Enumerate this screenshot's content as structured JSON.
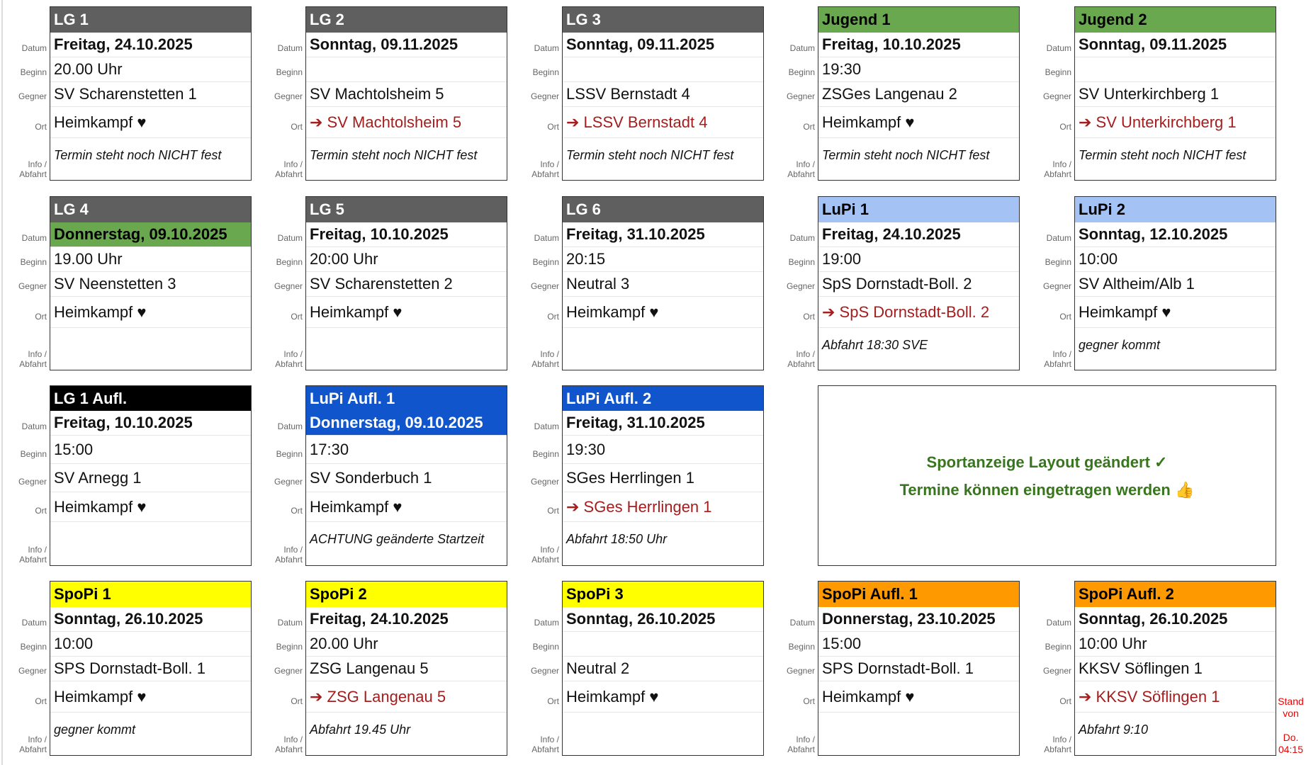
{
  "labels": {
    "datum": "Datum",
    "beginn": "Beginn",
    "gegner": "Gegner",
    "ort": "Ort",
    "info1": "Info /",
    "info2": "Abfahrt"
  },
  "colors": {
    "gray": "#5f5f5f",
    "green": "#6aa84f",
    "lightblue": "#a4c2f4",
    "blue": "#1155cc",
    "black": "#000000",
    "yellow": "#ffff00",
    "orange": "#ff9900",
    "away_text": "#a51d1d",
    "message_text": "#38761d",
    "stand_text": "#ee0000"
  },
  "cards": [
    {
      "title": "LG 1",
      "bg": "#5f5f5f",
      "fg": "#ffffff",
      "datum": "Freitag, 24.10.2025",
      "beginn": "20.00 Uhr",
      "gegner": "SV Scharenstetten 1",
      "ort": "Heimkampf ♥",
      "away": false,
      "info": "Termin steht noch NICHT fest"
    },
    {
      "title": "LG 2",
      "bg": "#5f5f5f",
      "fg": "#ffffff",
      "datum": "Sonntag, 09.11.2025",
      "beginn": "",
      "gegner": "SV Machtolsheim 5",
      "ort": "➔ SV Machtolsheim 5",
      "away": true,
      "info": "Termin steht noch NICHT fest"
    },
    {
      "title": "LG 3",
      "bg": "#5f5f5f",
      "fg": "#ffffff",
      "datum": "Sonntag, 09.11.2025",
      "beginn": "",
      "gegner": "LSSV Bernstadt 4",
      "ort": "➔ LSSV Bernstadt 4",
      "away": true,
      "info": "Termin steht noch NICHT fest"
    },
    {
      "title": "Jugend 1",
      "bg": "#6aa84f",
      "fg": "#000000",
      "datum": "Freitag, 10.10.2025",
      "beginn": "19:30",
      "gegner": "ZSGes Langenau 2",
      "ort": "Heimkampf ♥",
      "away": false,
      "info": "Termin steht noch NICHT fest"
    },
    {
      "title": "Jugend 2",
      "bg": "#6aa84f",
      "fg": "#000000",
      "datum": "Sonntag, 09.11.2025",
      "beginn": "",
      "gegner": "SV Unterkirchberg 1",
      "ort": "➔ SV Unterkirchberg 1",
      "away": true,
      "info": "Termin steht noch NICHT fest"
    },
    {
      "title": "LG 4",
      "bg": "#5f5f5f",
      "fg": "#ffffff",
      "datum": "Donnerstag, 09.10.2025",
      "datum_bg": "#6aa84f",
      "datum_fg": "#000000",
      "beginn": "19.00 Uhr",
      "gegner": "SV Neenstetten 3",
      "ort": "Heimkampf ♥",
      "away": false,
      "info": ""
    },
    {
      "title": "LG 5",
      "bg": "#5f5f5f",
      "fg": "#ffffff",
      "datum": "Freitag, 10.10.2025",
      "beginn": "20:00 Uhr",
      "gegner": "SV Scharenstetten 2",
      "ort": "Heimkampf ♥",
      "away": false,
      "info": ""
    },
    {
      "title": "LG 6",
      "bg": "#5f5f5f",
      "fg": "#ffffff",
      "datum": "Freitag, 31.10.2025",
      "beginn": "20:15",
      "gegner": "Neutral 3",
      "ort": "Heimkampf ♥",
      "away": false,
      "info": ""
    },
    {
      "title": "LuPi 1",
      "bg": "#a4c2f4",
      "fg": "#000000",
      "datum": "Freitag, 24.10.2025",
      "beginn": "19:00",
      "gegner": "SpS Dornstadt-Boll. 2",
      "ort": "➔ SpS Dornstadt-Boll. 2",
      "away": true,
      "info": "Abfahrt 18:30 SVE"
    },
    {
      "title": "LuPi 2",
      "bg": "#a4c2f4",
      "fg": "#000000",
      "datum": "Sonntag, 12.10.2025",
      "beginn": "10:00",
      "gegner": "SV Altheim/Alb 1",
      "ort": "Heimkampf ♥",
      "away": false,
      "info": "gegner kommt"
    },
    {
      "title": "LG 1 Aufl.",
      "bg": "#000000",
      "fg": "#ffffff",
      "datum": "Freitag, 10.10.2025",
      "beginn": "15:00",
      "gegner": "SV Arnegg 1",
      "ort": "Heimkampf ♥",
      "away": false,
      "info": ""
    },
    {
      "title": "LuPi Aufl. 1",
      "bg": "#1155cc",
      "fg": "#ffffff",
      "datum": "Donnerstag, 09.10.2025",
      "datum_bg": "#1155cc",
      "datum_fg": "#ffffff",
      "beginn": "17:30",
      "gegner": "SV Sonderbuch 1",
      "ort": "Heimkampf ♥",
      "away": false,
      "info": "ACHTUNG geänderte Startzeit"
    },
    {
      "title": "LuPi Aufl. 2",
      "bg": "#1155cc",
      "fg": "#ffffff",
      "datum": "Freitag, 31.10.2025",
      "beginn": "19:30",
      "gegner": "SGes Herrlingen 1",
      "ort": "➔ SGes Herrlingen 1",
      "away": true,
      "info": "Abfahrt 18:50 Uhr"
    },
    {
      "title": "SpoPi 1",
      "bg": "#ffff00",
      "fg": "#000000",
      "datum": "Sonntag, 26.10.2025",
      "beginn": "10:00",
      "gegner": "SPS Dornstadt-Boll. 1",
      "ort": "Heimkampf ♥",
      "away": false,
      "info": "gegner kommt"
    },
    {
      "title": "SpoPi 2",
      "bg": "#ffff00",
      "fg": "#000000",
      "datum": "Freitag, 24.10.2025",
      "beginn": "20.00 Uhr",
      "gegner": "ZSG Langenau 5",
      "ort": "➔ ZSG Langenau 5",
      "away": true,
      "info": "Abfahrt 19.45 Uhr"
    },
    {
      "title": "SpoPi 3",
      "bg": "#ffff00",
      "fg": "#000000",
      "datum": "Sonntag, 26.10.2025",
      "beginn": "",
      "gegner": "Neutral 2",
      "ort": "Heimkampf ♥",
      "away": false,
      "info": ""
    },
    {
      "title": "SpoPi Aufl. 1",
      "bg": "#ff9900",
      "fg": "#000000",
      "datum": "Donnerstag, 23.10.2025",
      "beginn": "15:00",
      "gegner": "SPS Dornstadt-Boll. 1",
      "ort": "Heimkampf ♥",
      "away": false,
      "info": ""
    },
    {
      "title": "SpoPi Aufl. 2",
      "bg": "#ff9900",
      "fg": "#000000",
      "datum": "Sonntag, 26.10.2025",
      "beginn": "10:00 Uhr",
      "gegner": "KKSV Söflingen 1",
      "ort": "➔ KKSV Söflingen 1",
      "away": true,
      "info": "Abfahrt 9:10"
    }
  ],
  "message": {
    "line1": "Sportanzeige Layout geändert ✓",
    "line2": "Termine können eingetragen werden 👍"
  },
  "stand": {
    "line1": "Stand",
    "line2": "von",
    "line3": "Do.",
    "line4": "04:15"
  }
}
